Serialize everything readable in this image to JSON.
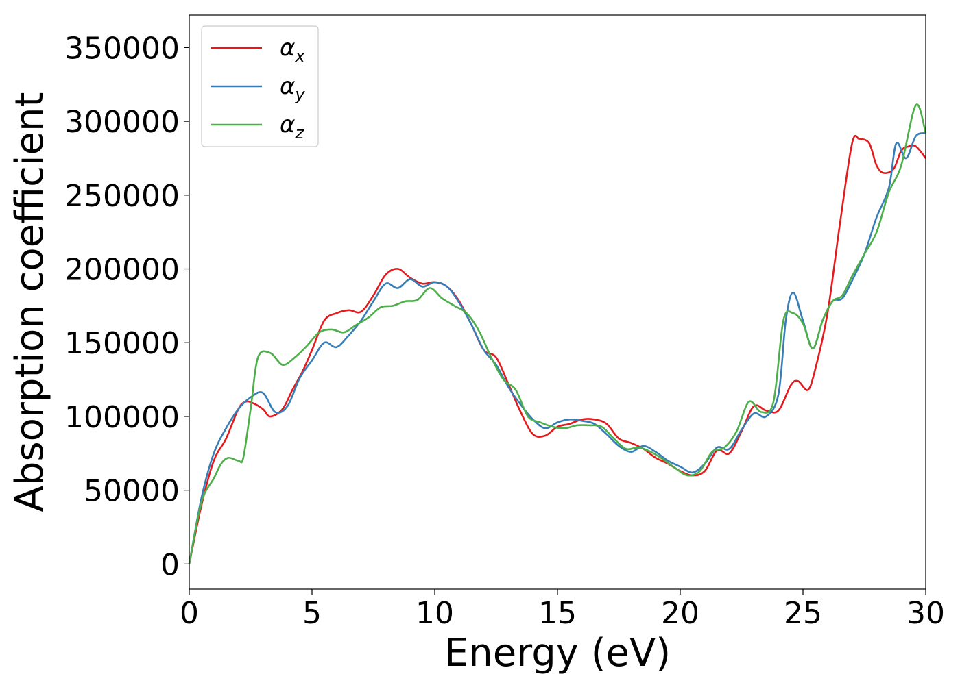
{
  "chart_data": {
    "type": "line",
    "xlabel": "Energy (eV)",
    "ylabel": "Absorption coefficient",
    "xlim": [
      0,
      30
    ],
    "ylim": [
      -17000,
      372000
    ],
    "xticks": [
      0,
      5,
      10,
      15,
      20,
      25,
      30
    ],
    "xtick_labels": [
      "0",
      "5",
      "10",
      "15",
      "20",
      "25",
      "30"
    ],
    "yticks": [
      0,
      50000,
      100000,
      150000,
      200000,
      250000,
      300000,
      350000
    ],
    "ytick_labels": [
      "0",
      "50000",
      "100000",
      "150000",
      "200000",
      "250000",
      "300000",
      "350000"
    ],
    "grid": false,
    "legend": "upper-left",
    "series": [
      {
        "name": "α",
        "subscript": "x",
        "color": "#e41a1c",
        "x": [
          0,
          0.5,
          1,
          1.5,
          2,
          2.3,
          2.6,
          3,
          3.3,
          3.8,
          4.2,
          4.6,
          5,
          5.5,
          6,
          6.5,
          7,
          7.5,
          8,
          8.5,
          9,
          9.5,
          10,
          10.5,
          11,
          11.5,
          12,
          12.5,
          13,
          13.5,
          14,
          14.5,
          15,
          15.5,
          16,
          16.5,
          17,
          17.5,
          18,
          18.5,
          19,
          19.5,
          20,
          20.5,
          21,
          21.5,
          22,
          22.5,
          23,
          23.5,
          24,
          24.5,
          24.8,
          25.2,
          25.5,
          26,
          26.5,
          27,
          27.3,
          27.7,
          28,
          28.3,
          28.7,
          29,
          29.3,
          29.6,
          30
        ],
        "y": [
          0,
          40000,
          70000,
          85000,
          105000,
          110000,
          109000,
          105000,
          100000,
          105000,
          118000,
          130000,
          145000,
          165000,
          170000,
          172000,
          171000,
          182000,
          196000,
          200000,
          194000,
          190000,
          191000,
          188000,
          178000,
          162000,
          145000,
          140000,
          122000,
          103000,
          88000,
          87000,
          93000,
          95000,
          98000,
          98000,
          95000,
          85000,
          82000,
          78000,
          72000,
          68000,
          63000,
          60000,
          63000,
          77000,
          75000,
          90000,
          107000,
          104000,
          104000,
          121000,
          124000,
          118000,
          132000,
          170000,
          230000,
          285000,
          288000,
          285000,
          270000,
          265000,
          268000,
          280000,
          283000,
          283000,
          275000
        ]
      },
      {
        "name": "α",
        "subscript": "y",
        "color": "#377eb8",
        "x": [
          0,
          0.5,
          1,
          1.5,
          2,
          2.5,
          3,
          3.5,
          4,
          4.5,
          5,
          5.5,
          6,
          6.5,
          7,
          7.5,
          8,
          8.5,
          9,
          9.5,
          10,
          10.5,
          11,
          11.5,
          12,
          12.5,
          13,
          13.5,
          14,
          14.5,
          15,
          15.5,
          16,
          16.5,
          17,
          17.5,
          18,
          18.5,
          19,
          19.5,
          20,
          20.5,
          21,
          21.5,
          22,
          22.5,
          23,
          23.5,
          24,
          24.3,
          24.6,
          25,
          25.4,
          25.8,
          26.2,
          26.6,
          27,
          27.5,
          28,
          28.5,
          28.8,
          29.2,
          29.6,
          30
        ],
        "y": [
          0,
          45000,
          75000,
          92000,
          105000,
          113000,
          116000,
          103000,
          107000,
          126000,
          138000,
          150000,
          147000,
          155000,
          165000,
          178000,
          190000,
          187000,
          193000,
          188000,
          191000,
          188000,
          177000,
          162000,
          145000,
          135000,
          120000,
          108000,
          98000,
          92000,
          96000,
          98000,
          97000,
          95000,
          88000,
          80000,
          76000,
          80000,
          76000,
          70000,
          66000,
          62000,
          68000,
          79000,
          78000,
          91000,
          102000,
          100000,
          115000,
          165000,
          184000,
          165000,
          146000,
          165000,
          178000,
          180000,
          192000,
          210000,
          235000,
          255000,
          285000,
          275000,
          290000,
          292000
        ]
      },
      {
        "name": "α",
        "subscript": "z",
        "color": "#4daf4a",
        "x": [
          0,
          0.5,
          1,
          1.3,
          1.6,
          2,
          2.2,
          2.5,
          2.8,
          3.3,
          3.8,
          4.3,
          4.8,
          5.3,
          5.8,
          6.3,
          6.8,
          7.3,
          7.8,
          8.3,
          8.8,
          9.3,
          9.8,
          10.3,
          10.8,
          11.3,
          11.8,
          12.3,
          12.8,
          13.3,
          13.8,
          14.3,
          14.8,
          15.3,
          15.8,
          16.3,
          16.8,
          17.3,
          17.8,
          18.3,
          18.8,
          19.3,
          19.8,
          20.3,
          20.8,
          21.3,
          21.8,
          22.3,
          22.8,
          23.3,
          23.8,
          24.2,
          24.6,
          25,
          25.4,
          25.8,
          26.2,
          26.6,
          27,
          27.5,
          28,
          28.5,
          29,
          29.6,
          30
        ],
        "y": [
          0,
          42000,
          58000,
          68000,
          72000,
          70000,
          72000,
          105000,
          140000,
          143000,
          135000,
          140000,
          148000,
          157000,
          159000,
          157000,
          162000,
          167000,
          174000,
          175000,
          178000,
          179000,
          187000,
          180000,
          175000,
          170000,
          158000,
          140000,
          125000,
          118000,
          100000,
          96000,
          93000,
          92000,
          94000,
          94000,
          93000,
          85000,
          78000,
          79000,
          76000,
          71000,
          65000,
          60000,
          63000,
          76000,
          79000,
          90000,
          110000,
          103000,
          110000,
          165000,
          170000,
          163000,
          146000,
          165000,
          178000,
          182000,
          195000,
          210000,
          225000,
          252000,
          270000,
          311000,
          292000
        ]
      }
    ]
  }
}
